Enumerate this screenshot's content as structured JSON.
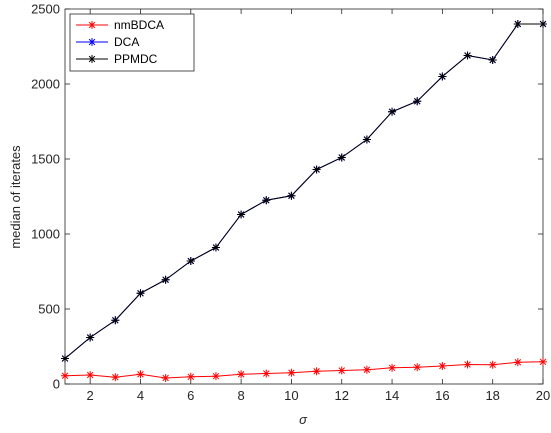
{
  "chart_data": {
    "type": "line",
    "xlabel": "σ",
    "ylabel": "median of iterates",
    "xlim": [
      1,
      20
    ],
    "ylim": [
      0,
      2500
    ],
    "x_ticks": [
      2,
      4,
      6,
      8,
      10,
      12,
      14,
      16,
      18,
      20
    ],
    "y_ticks": [
      0,
      500,
      1000,
      1500,
      2000,
      2500
    ],
    "legend_position": "top-left",
    "grid": false,
    "x": [
      1,
      2,
      3,
      4,
      5,
      6,
      7,
      8,
      9,
      10,
      11,
      12,
      13,
      14,
      15,
      16,
      17,
      18,
      19,
      20
    ],
    "series": [
      {
        "name": "nmBDCA",
        "color": "#ff0000",
        "marker": "asterisk",
        "values": [
          55,
          60,
          45,
          65,
          40,
          48,
          52,
          65,
          70,
          75,
          85,
          90,
          95,
          108,
          112,
          120,
          130,
          128,
          145,
          148
        ]
      },
      {
        "name": "DCA",
        "color": "#0000ff",
        "marker": "asterisk",
        "values": [
          170,
          310,
          425,
          605,
          695,
          820,
          910,
          1130,
          1225,
          1255,
          1430,
          1510,
          1630,
          1815,
          1885,
          2050,
          2190,
          2160,
          2400,
          2400
        ]
      },
      {
        "name": "PPMDC",
        "color": "#000000",
        "marker": "asterisk",
        "values": [
          170,
          310,
          425,
          605,
          695,
          820,
          910,
          1130,
          1225,
          1255,
          1430,
          1510,
          1630,
          1815,
          1885,
          2050,
          2190,
          2160,
          2400,
          2400
        ]
      }
    ]
  }
}
